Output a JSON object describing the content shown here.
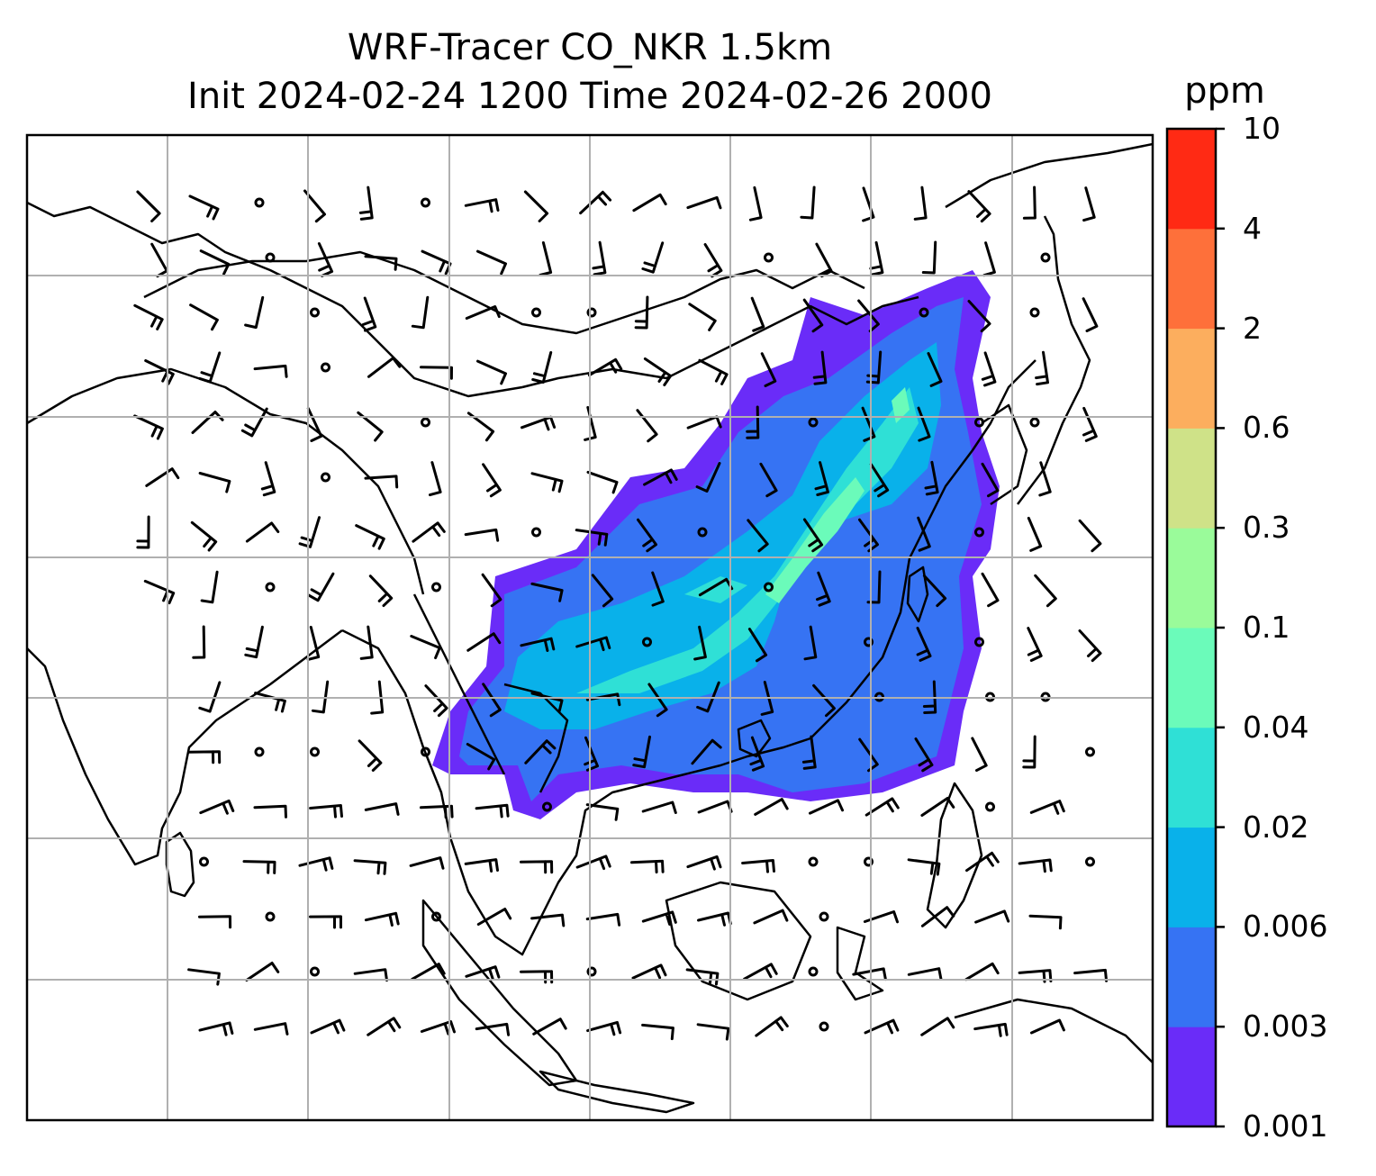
{
  "title": {
    "line1": "WRF-Tracer CO_NKR 1.5km",
    "line2": "Init 2024-02-24 1200 Time 2024-02-26 2000"
  },
  "colorbar": {
    "unit": "ppm",
    "ticks": [
      "0.001",
      "0.003",
      "0.006",
      "0.02",
      "0.04",
      "0.1",
      "0.3",
      "0.6",
      "2",
      "4",
      "10"
    ],
    "colors": [
      "#6a2cf8",
      "#3673f3",
      "#09b1ea",
      "#2fe0d6",
      "#6bfbba",
      "#9afb9a",
      "#cfe288",
      "#fcae5e",
      "#fe703a",
      "#ff2a14"
    ]
  },
  "map": {
    "field_colors": [
      "#6a2cf8",
      "#3673f3",
      "#09b1ea",
      "#2fe0d6",
      "#6bfbba"
    ]
  }
}
